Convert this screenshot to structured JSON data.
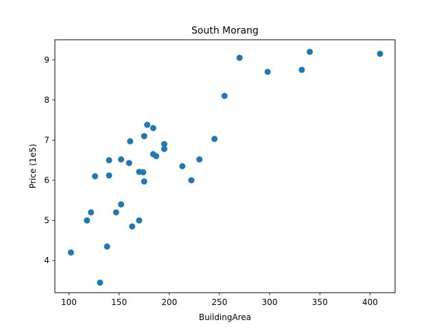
{
  "chart_data": {
    "type": "scatter",
    "title": "South Morang",
    "xlabel": "BuildingArea",
    "ylabel": "Price (1e5)",
    "xlim": [
      86,
      425
    ],
    "ylim": [
      3.2,
      9.5
    ],
    "xticks": [
      100,
      150,
      200,
      250,
      300,
      350,
      400
    ],
    "yticks": [
      4,
      5,
      6,
      7,
      8,
      9
    ],
    "grid": false,
    "marker_color": "#1f77b4",
    "points": [
      {
        "x": 102,
        "y": 4.2
      },
      {
        "x": 118,
        "y": 5.0
      },
      {
        "x": 122,
        "y": 5.2
      },
      {
        "x": 126,
        "y": 6.1
      },
      {
        "x": 131,
        "y": 3.45
      },
      {
        "x": 138,
        "y": 4.35
      },
      {
        "x": 140,
        "y": 6.12
      },
      {
        "x": 140,
        "y": 6.5
      },
      {
        "x": 147,
        "y": 5.2
      },
      {
        "x": 152,
        "y": 6.52
      },
      {
        "x": 152,
        "y": 5.4
      },
      {
        "x": 160,
        "y": 6.43
      },
      {
        "x": 161,
        "y": 6.97
      },
      {
        "x": 163,
        "y": 4.85
      },
      {
        "x": 170,
        "y": 6.21
      },
      {
        "x": 170,
        "y": 5.0
      },
      {
        "x": 174,
        "y": 6.2
      },
      {
        "x": 175,
        "y": 5.97
      },
      {
        "x": 175,
        "y": 7.1
      },
      {
        "x": 178,
        "y": 7.38
      },
      {
        "x": 184,
        "y": 7.3
      },
      {
        "x": 184,
        "y": 6.65
      },
      {
        "x": 187,
        "y": 6.6
      },
      {
        "x": 195,
        "y": 6.9
      },
      {
        "x": 195,
        "y": 6.78
      },
      {
        "x": 213,
        "y": 6.35
      },
      {
        "x": 222,
        "y": 6.0
      },
      {
        "x": 230,
        "y": 6.52
      },
      {
        "x": 245,
        "y": 7.03
      },
      {
        "x": 255,
        "y": 8.1
      },
      {
        "x": 270,
        "y": 9.05
      },
      {
        "x": 298,
        "y": 8.7
      },
      {
        "x": 332,
        "y": 8.75
      },
      {
        "x": 340,
        "y": 9.2
      },
      {
        "x": 410,
        "y": 9.15
      }
    ]
  }
}
